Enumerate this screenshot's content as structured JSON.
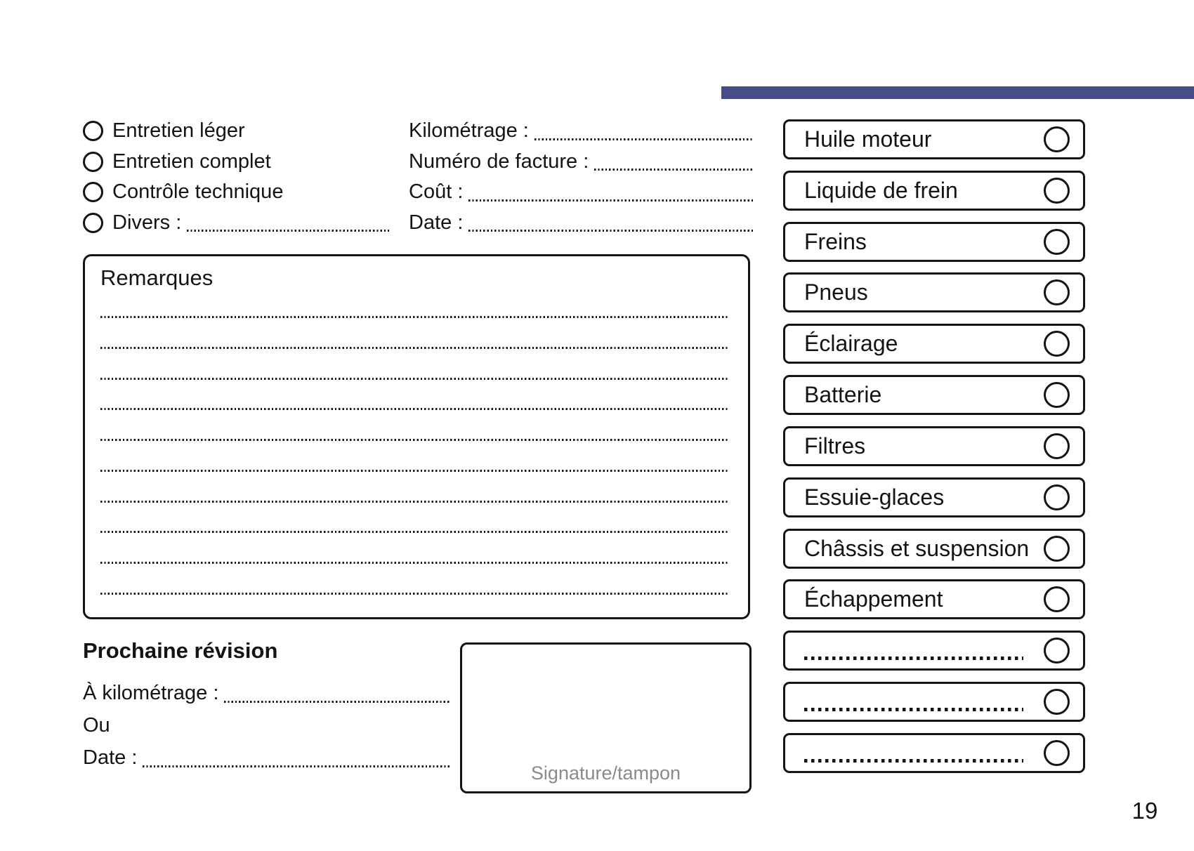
{
  "page": {
    "number": "19",
    "accent_color": "#464e8a"
  },
  "service_type_options": [
    {
      "label": "Entretien léger",
      "has_dots": false
    },
    {
      "label": "Entretien complet",
      "has_dots": false
    },
    {
      "label": "Contrôle technique",
      "has_dots": false
    },
    {
      "label": "Divers :",
      "has_dots": true
    }
  ],
  "invoice_fields": [
    {
      "label": "Kilométrage :"
    },
    {
      "label": "Numéro de facture :"
    },
    {
      "label": "Coût :"
    },
    {
      "label": "Date :"
    }
  ],
  "remarks": {
    "title": "Remarques"
  },
  "next_service": {
    "title": "Prochaine révision",
    "fields": [
      {
        "label": "À kilométrage :",
        "has_dots": true
      },
      {
        "label": "Ou",
        "has_dots": false
      },
      {
        "label": "Date :",
        "has_dots": true
      }
    ]
  },
  "signature": {
    "label": "Signature/tampon"
  },
  "checklist": {
    "items": [
      {
        "label": "Huile moteur",
        "blank": false
      },
      {
        "label": "Liquide de frein",
        "blank": false
      },
      {
        "label": "Freins",
        "blank": false
      },
      {
        "label": "Pneus",
        "blank": false
      },
      {
        "label": "Éclairage",
        "blank": false
      },
      {
        "label": "Batterie",
        "blank": false
      },
      {
        "label": "Filtres",
        "blank": false
      },
      {
        "label": "Essuie-glaces",
        "blank": false
      },
      {
        "label": "Châssis et suspension",
        "blank": false
      },
      {
        "label": "Échappement",
        "blank": false
      },
      {
        "label": "",
        "blank": true
      },
      {
        "label": "",
        "blank": true
      },
      {
        "label": "",
        "blank": true
      }
    ]
  }
}
